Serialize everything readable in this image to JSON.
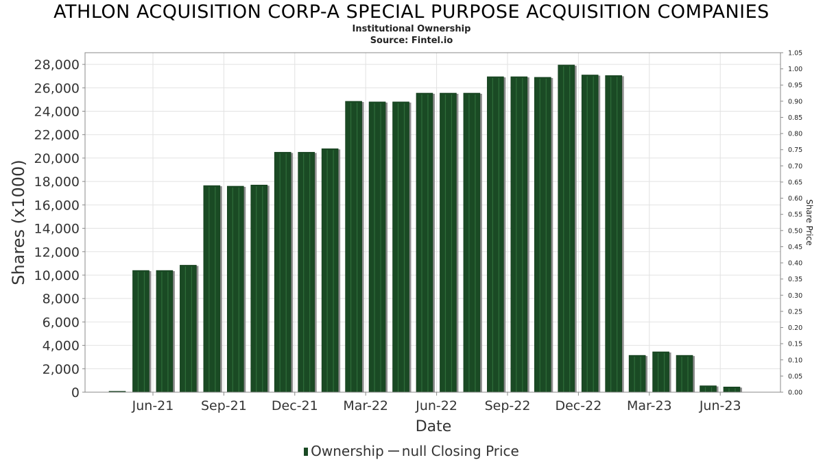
{
  "chart_data": {
    "type": "bar",
    "title": "ATHLON ACQUISITION CORP-A SPECIAL PURPOSE ACQUISITION COMPANIES",
    "subtitle": "Institutional Ownership",
    "source": "Source: Fintel.io",
    "xlabel": "Date",
    "ylabel": "Shares (x1000)",
    "y2label": "Share Price",
    "ylim": [
      0,
      29000
    ],
    "y2lim": [
      0,
      1.05
    ],
    "yticks": [
      "0",
      "2,000",
      "4,000",
      "6,000",
      "8,000",
      "10,000",
      "12,000",
      "14,000",
      "16,000",
      "18,000",
      "20,000",
      "22,000",
      "24,000",
      "26,000",
      "28,000"
    ],
    "y2ticks": [
      "0.00",
      "0.05",
      "0.10",
      "0.15",
      "0.20",
      "0.25",
      "0.30",
      "0.35",
      "0.40",
      "0.45",
      "0.50",
      "0.55",
      "0.60",
      "0.65",
      "0.70",
      "0.75",
      "0.80",
      "0.85",
      "0.90",
      "0.95",
      "1.00",
      "1.05"
    ],
    "xticks": [
      "Jun-21",
      "Sep-21",
      "Dec-21",
      "Mar-22",
      "Jun-22",
      "Sep-22",
      "Dec-22",
      "Mar-23",
      "Jun-23"
    ],
    "series": [
      {
        "name": "Ownership",
        "color": "#1a4a24",
        "values": [
          80,
          10400,
          10400,
          10850,
          17650,
          17600,
          17700,
          20500,
          20500,
          20800,
          24850,
          24800,
          24800,
          25550,
          25550,
          25550,
          26950,
          26950,
          26900,
          27950,
          27100,
          27050,
          3150,
          3450,
          3150,
          550,
          450
        ]
      }
    ],
    "legend": {
      "ownership_label": "Ownership",
      "price_label": "null Closing Price"
    },
    "grid": true,
    "legend_position": "bottom"
  }
}
